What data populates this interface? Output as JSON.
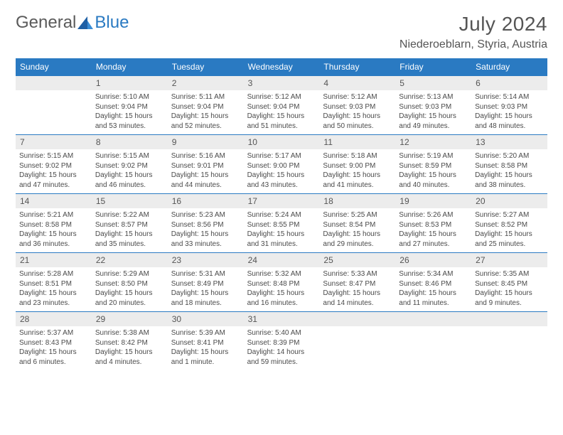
{
  "brand": {
    "word1": "General",
    "word2": "Blue"
  },
  "title": "July 2024",
  "location": "Niederoeblarn, Styria, Austria",
  "colors": {
    "header_bg": "#2a7ac2",
    "header_text": "#ffffff",
    "daynum_bg": "#ececec",
    "text": "#4a4a4a",
    "rule": "#2a7ac2"
  },
  "days_of_week": [
    "Sunday",
    "Monday",
    "Tuesday",
    "Wednesday",
    "Thursday",
    "Friday",
    "Saturday"
  ],
  "weeks": [
    [
      {
        "num": "",
        "lines": []
      },
      {
        "num": "1",
        "lines": [
          "Sunrise: 5:10 AM",
          "Sunset: 9:04 PM",
          "Daylight: 15 hours",
          "and 53 minutes."
        ]
      },
      {
        "num": "2",
        "lines": [
          "Sunrise: 5:11 AM",
          "Sunset: 9:04 PM",
          "Daylight: 15 hours",
          "and 52 minutes."
        ]
      },
      {
        "num": "3",
        "lines": [
          "Sunrise: 5:12 AM",
          "Sunset: 9:04 PM",
          "Daylight: 15 hours",
          "and 51 minutes."
        ]
      },
      {
        "num": "4",
        "lines": [
          "Sunrise: 5:12 AM",
          "Sunset: 9:03 PM",
          "Daylight: 15 hours",
          "and 50 minutes."
        ]
      },
      {
        "num": "5",
        "lines": [
          "Sunrise: 5:13 AM",
          "Sunset: 9:03 PM",
          "Daylight: 15 hours",
          "and 49 minutes."
        ]
      },
      {
        "num": "6",
        "lines": [
          "Sunrise: 5:14 AM",
          "Sunset: 9:03 PM",
          "Daylight: 15 hours",
          "and 48 minutes."
        ]
      }
    ],
    [
      {
        "num": "7",
        "lines": [
          "Sunrise: 5:15 AM",
          "Sunset: 9:02 PM",
          "Daylight: 15 hours",
          "and 47 minutes."
        ]
      },
      {
        "num": "8",
        "lines": [
          "Sunrise: 5:15 AM",
          "Sunset: 9:02 PM",
          "Daylight: 15 hours",
          "and 46 minutes."
        ]
      },
      {
        "num": "9",
        "lines": [
          "Sunrise: 5:16 AM",
          "Sunset: 9:01 PM",
          "Daylight: 15 hours",
          "and 44 minutes."
        ]
      },
      {
        "num": "10",
        "lines": [
          "Sunrise: 5:17 AM",
          "Sunset: 9:00 PM",
          "Daylight: 15 hours",
          "and 43 minutes."
        ]
      },
      {
        "num": "11",
        "lines": [
          "Sunrise: 5:18 AM",
          "Sunset: 9:00 PM",
          "Daylight: 15 hours",
          "and 41 minutes."
        ]
      },
      {
        "num": "12",
        "lines": [
          "Sunrise: 5:19 AM",
          "Sunset: 8:59 PM",
          "Daylight: 15 hours",
          "and 40 minutes."
        ]
      },
      {
        "num": "13",
        "lines": [
          "Sunrise: 5:20 AM",
          "Sunset: 8:58 PM",
          "Daylight: 15 hours",
          "and 38 minutes."
        ]
      }
    ],
    [
      {
        "num": "14",
        "lines": [
          "Sunrise: 5:21 AM",
          "Sunset: 8:58 PM",
          "Daylight: 15 hours",
          "and 36 minutes."
        ]
      },
      {
        "num": "15",
        "lines": [
          "Sunrise: 5:22 AM",
          "Sunset: 8:57 PM",
          "Daylight: 15 hours",
          "and 35 minutes."
        ]
      },
      {
        "num": "16",
        "lines": [
          "Sunrise: 5:23 AM",
          "Sunset: 8:56 PM",
          "Daylight: 15 hours",
          "and 33 minutes."
        ]
      },
      {
        "num": "17",
        "lines": [
          "Sunrise: 5:24 AM",
          "Sunset: 8:55 PM",
          "Daylight: 15 hours",
          "and 31 minutes."
        ]
      },
      {
        "num": "18",
        "lines": [
          "Sunrise: 5:25 AM",
          "Sunset: 8:54 PM",
          "Daylight: 15 hours",
          "and 29 minutes."
        ]
      },
      {
        "num": "19",
        "lines": [
          "Sunrise: 5:26 AM",
          "Sunset: 8:53 PM",
          "Daylight: 15 hours",
          "and 27 minutes."
        ]
      },
      {
        "num": "20",
        "lines": [
          "Sunrise: 5:27 AM",
          "Sunset: 8:52 PM",
          "Daylight: 15 hours",
          "and 25 minutes."
        ]
      }
    ],
    [
      {
        "num": "21",
        "lines": [
          "Sunrise: 5:28 AM",
          "Sunset: 8:51 PM",
          "Daylight: 15 hours",
          "and 23 minutes."
        ]
      },
      {
        "num": "22",
        "lines": [
          "Sunrise: 5:29 AM",
          "Sunset: 8:50 PM",
          "Daylight: 15 hours",
          "and 20 minutes."
        ]
      },
      {
        "num": "23",
        "lines": [
          "Sunrise: 5:31 AM",
          "Sunset: 8:49 PM",
          "Daylight: 15 hours",
          "and 18 minutes."
        ]
      },
      {
        "num": "24",
        "lines": [
          "Sunrise: 5:32 AM",
          "Sunset: 8:48 PM",
          "Daylight: 15 hours",
          "and 16 minutes."
        ]
      },
      {
        "num": "25",
        "lines": [
          "Sunrise: 5:33 AM",
          "Sunset: 8:47 PM",
          "Daylight: 15 hours",
          "and 14 minutes."
        ]
      },
      {
        "num": "26",
        "lines": [
          "Sunrise: 5:34 AM",
          "Sunset: 8:46 PM",
          "Daylight: 15 hours",
          "and 11 minutes."
        ]
      },
      {
        "num": "27",
        "lines": [
          "Sunrise: 5:35 AM",
          "Sunset: 8:45 PM",
          "Daylight: 15 hours",
          "and 9 minutes."
        ]
      }
    ],
    [
      {
        "num": "28",
        "lines": [
          "Sunrise: 5:37 AM",
          "Sunset: 8:43 PM",
          "Daylight: 15 hours",
          "and 6 minutes."
        ]
      },
      {
        "num": "29",
        "lines": [
          "Sunrise: 5:38 AM",
          "Sunset: 8:42 PM",
          "Daylight: 15 hours",
          "and 4 minutes."
        ]
      },
      {
        "num": "30",
        "lines": [
          "Sunrise: 5:39 AM",
          "Sunset: 8:41 PM",
          "Daylight: 15 hours",
          "and 1 minute."
        ]
      },
      {
        "num": "31",
        "lines": [
          "Sunrise: 5:40 AM",
          "Sunset: 8:39 PM",
          "Daylight: 14 hours",
          "and 59 minutes."
        ]
      },
      {
        "num": "",
        "lines": []
      },
      {
        "num": "",
        "lines": []
      },
      {
        "num": "",
        "lines": []
      }
    ]
  ]
}
